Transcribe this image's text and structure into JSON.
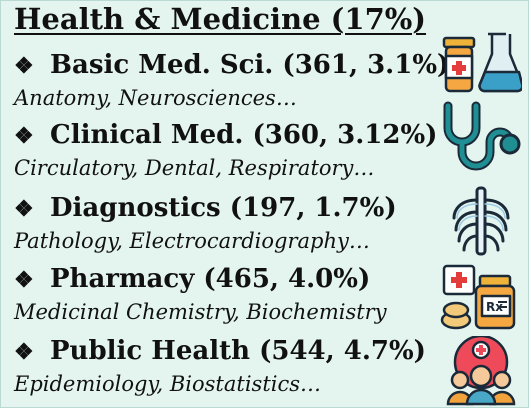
{
  "title": "Health & Medicine (17%)",
  "bullet_symbol": "❖",
  "items": [
    {
      "heading": "Basic Med. Sci. (361, 3.1%)",
      "subtitle": "Anatomy, Neurosciences…",
      "icon": "medicine-lab-icon"
    },
    {
      "heading": "Clinical Med. (360, 3.12%)",
      "subtitle": "Circulatory, Dental, Respiratory…",
      "icon": "stethoscope-icon"
    },
    {
      "heading": "Diagnostics (197, 1.7%)",
      "subtitle": "Pathology, Electrocardiography…",
      "icon": "ribcage-xray-icon"
    },
    {
      "heading": "Pharmacy (465, 4.0%)",
      "subtitle": "Medicinal Chemistry, Biochemistry",
      "icon": "pharmacy-icon"
    },
    {
      "heading": "Public Health (544, 4.7%)",
      "subtitle": "Epidemiology, Biostatistics…",
      "icon": "public-health-icon"
    }
  ],
  "colors": {
    "background": "#e4f5f0",
    "text": "#111111",
    "icon_outline": "#1b2a38"
  }
}
